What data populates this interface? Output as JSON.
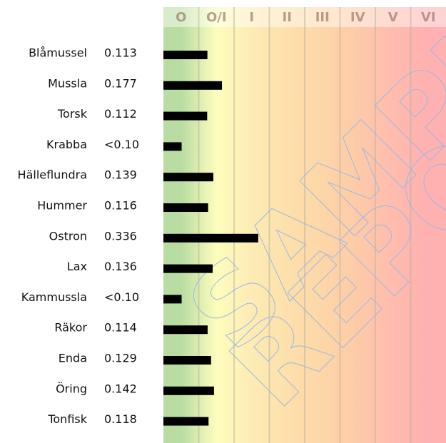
{
  "chart_data": {
    "type": "bar",
    "orientation": "horizontal",
    "categories": [
      "Blåmussel",
      "Mussla",
      "Torsk",
      "Krabba",
      "Hälleflundra",
      "Hummer",
      "Ostron",
      "Lax",
      "Kammussla",
      "Räkor",
      "Enda",
      "Öring",
      "Tonfisk"
    ],
    "values": [
      0.113,
      0.177,
      0.112,
      0,
      0.139,
      0.116,
      0.336,
      0.136,
      0,
      0.114,
      0.129,
      0.142,
      0.118
    ],
    "value_labels": [
      "0.113",
      "0.177",
      "0.112",
      "<0.10",
      "0.139",
      "0.116",
      "0.336",
      "0.136",
      "<0.10",
      "0.114",
      "0.129",
      "0.142",
      "0.118"
    ],
    "color": "#000000",
    "xlim": [
      -0.08,
      1.16
    ],
    "bands": [
      {
        "label": "O",
        "color": "#b9dca2"
      },
      {
        "label": "O/I",
        "color": "#fdfdbd"
      },
      {
        "label": "I",
        "color": "#fdebb5"
      },
      {
        "label": "II",
        "color": "#fde0ab"
      },
      {
        "label": "III",
        "color": "#fdd6a8"
      },
      {
        "label": "IV",
        "color": "#fdcaa8"
      },
      {
        "label": "V",
        "color": "#ffbcae"
      },
      {
        "label": "VI",
        "color": "#ffb0b0"
      }
    ],
    "watermark": [
      "SAMPLE",
      "REPORT"
    ]
  }
}
